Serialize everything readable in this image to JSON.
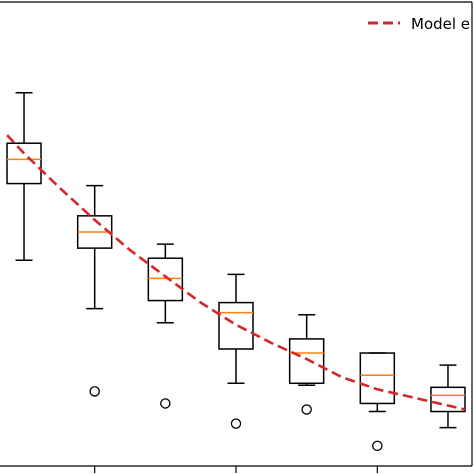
{
  "chart_data": {
    "type": "box",
    "title": "",
    "xlabel": "",
    "ylabel": "",
    "legend": {
      "placement": "top-right",
      "entries": [
        {
          "label": "Model e",
          "style": "dashed-line"
        }
      ]
    },
    "boxes": [
      {
        "x": 0.0,
        "whisker_low": 1.67,
        "q1": 2.05,
        "median": 2.17,
        "q3": 2.25,
        "whisker_high": 2.5,
        "outliers": []
      },
      {
        "x": 0.5,
        "whisker_low": 1.43,
        "q1": 1.73,
        "median": 1.81,
        "q3": 1.89,
        "whisker_high": 2.04,
        "outliers": [
          1.02
        ]
      },
      {
        "x": 1.0,
        "whisker_low": 1.36,
        "q1": 1.47,
        "median": 1.58,
        "q3": 1.68,
        "whisker_high": 1.75,
        "outliers": [
          0.96
        ]
      },
      {
        "x": 1.5,
        "whisker_low": 1.06,
        "q1": 1.23,
        "median": 1.41,
        "q3": 1.46,
        "whisker_high": 1.6,
        "outliers": [
          0.86
        ]
      },
      {
        "x": 2.0,
        "whisker_low": 1.05,
        "q1": 1.06,
        "median": 1.21,
        "q3": 1.28,
        "whisker_high": 1.4,
        "outliers": [
          0.93
        ]
      },
      {
        "x": 2.5,
        "whisker_low": 0.92,
        "q1": 0.96,
        "median": 1.1,
        "q3": 1.21,
        "whisker_high": 1.21,
        "outliers": [
          0.75
        ]
      },
      {
        "x": 3.0,
        "whisker_low": 0.84,
        "q1": 0.92,
        "median": 1.0,
        "q3": 1.04,
        "whisker_high": 1.15,
        "outliers": []
      }
    ],
    "model_line": {
      "name": "Model e",
      "style": "dashed",
      "color": "#d62728",
      "x": [
        -0.12,
        0.0,
        0.25,
        0.5,
        0.75,
        1.0,
        1.25,
        1.5,
        1.75,
        2.0,
        2.25,
        2.5,
        2.75,
        3.0,
        3.12
      ],
      "y": [
        2.29,
        2.2,
        2.03,
        1.87,
        1.72,
        1.59,
        1.46,
        1.35,
        1.26,
        1.18,
        1.09,
        1.03,
        0.99,
        0.95,
        0.93
      ]
    },
    "xlim": [
      -0.17,
      3.17
    ],
    "ylim": [
      0.65,
      2.95
    ],
    "x_ticks": [
      0.5,
      1.5,
      2.5
    ],
    "grid": false,
    "colors": {
      "box": "#000000",
      "median": "#ff7f0e",
      "model": "#d62728"
    }
  }
}
